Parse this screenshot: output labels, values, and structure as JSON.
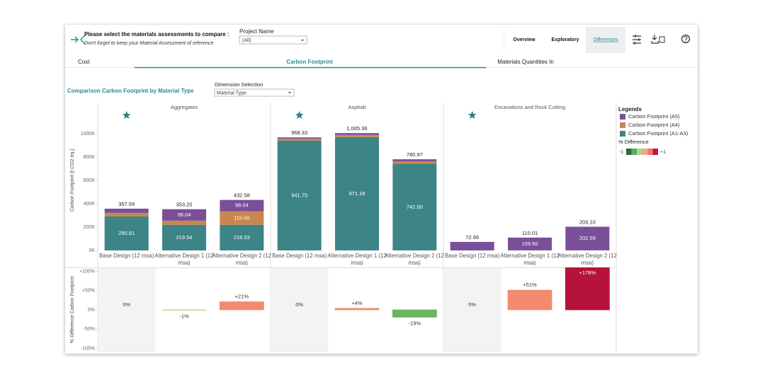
{
  "header": {
    "instruction": "Please select the materials assessments  to compare :",
    "note": "Don't forget to keep your Material Assessment of reference",
    "project_label": "Project Name",
    "project_value": "(All)"
  },
  "nav": {
    "items": [
      "Overview",
      "Exploratory",
      "Differences"
    ],
    "active": 2
  },
  "tabs": {
    "items": [
      "Cost",
      "Carbon Footprint",
      "Materials Quantities In"
    ],
    "active": 1
  },
  "section": {
    "title": "Comparison Carbon Footprint by Material Type",
    "dimension_label": "Dimension Selection",
    "dimension_value": "Material Type"
  },
  "legend": {
    "title": "Legends",
    "diff_title": "% Difference",
    "min_label": "-1",
    "max_label": "+1",
    "colors": [
      "#2d6a3a",
      "#5aae5a",
      "#a9d693",
      "#f7a58a",
      "#f07a6e",
      "#bd1a3e"
    ]
  },
  "chart_data": [
    {
      "type": "stacked-bar",
      "y_label": "Carbon Footprint [t CO2 eq.]",
      "panels": [
        "Aggregates",
        "Asphalt",
        "Excavations and Rock Cutting"
      ],
      "categories": [
        "Base Design (12 msa)",
        "Alternative Design 1 (12 msa)",
        "Alternative Design 2 (12 msa)",
        "Base Design (12 msa)",
        "Alternative Design 1 (12 msa)",
        "Alternative Design 2 (12 msa)",
        "Base Design (12 msa)",
        "Alternative Design 1 (12 msa)",
        "Alternative Design 2 (12 msa)"
      ],
      "series": [
        {
          "name": "Carbon Footprint (A5)",
          "color": "#7a4f9a",
          "values": [
            35.78,
            98.04,
            98.04,
            10.58,
            16.18,
            16.97,
            72.99,
            109.5,
            202.59
          ],
          "value_labels": [
            null,
            "98.04",
            "98.04",
            null,
            null,
            null,
            null,
            "109.50",
            "202.59"
          ]
        },
        {
          "name": "Carbon Footprint (A4)",
          "color": "#c9864d",
          "values": [
            31,
            35.62,
            115,
            16,
            18,
            22,
            0,
            0.26,
            0.26
          ],
          "value_labels": [
            null,
            null,
            "115.00",
            null,
            null,
            null,
            null,
            null,
            null
          ]
        },
        {
          "name": "Carbon Footprint (A1-A3)",
          "color": "#3d8487",
          "values": [
            290.81,
            219.54,
            219.53,
            941.75,
            971.18,
            742,
            0,
            0.25,
            0.25
          ],
          "value_labels": [
            "290.81",
            "219.54",
            "219.53",
            "941.75",
            "971.18",
            "742.00",
            null,
            null,
            null
          ]
        }
      ],
      "totals": [
        357.59,
        353.2,
        432.58,
        968.33,
        1005.36,
        780.97,
        72.99,
        110.01,
        203.1
      ],
      "total_labels": [
        "357.59",
        "353.20",
        "432.58",
        "968.33",
        "1,005.36",
        "780.97",
        "72.99",
        "110.01",
        "203.10"
      ],
      "ylim": [
        0,
        1200
      ],
      "yticks": [
        {
          "value": 0,
          "label": "0K"
        },
        {
          "value": 200,
          "label": "200K"
        },
        {
          "value": 400,
          "label": "400K"
        },
        {
          "value": 600,
          "label": "600K"
        },
        {
          "value": 800,
          "label": "800K"
        },
        {
          "value": 1000,
          "label": "1000K"
        }
      ]
    },
    {
      "type": "bar",
      "y_label": "% Difference Carbon Footprint",
      "values": [
        0,
        -1,
        21,
        0,
        4,
        -19,
        0,
        51,
        178
      ],
      "value_labels": [
        "0%",
        "-1%",
        "+21%",
        "0%",
        "+4%",
        "-19%",
        "0%",
        "+51%",
        "+178%"
      ],
      "colors": [
        "#f28b6e",
        "#a9d693",
        "#f28b6e",
        "#f28b6e",
        "#f28b6e",
        "#6bb55c",
        "#f28b6e",
        "#f28b6e",
        "#b5133a"
      ],
      "ylim": [
        -110,
        110
      ],
      "yticks": [
        {
          "value": 100,
          "label": "+100%"
        },
        {
          "value": 50,
          "label": "+50%"
        },
        {
          "value": 0,
          "label": "0%"
        },
        {
          "value": -50,
          "label": "-50%"
        },
        {
          "value": -100,
          "label": "-100%"
        }
      ]
    }
  ]
}
